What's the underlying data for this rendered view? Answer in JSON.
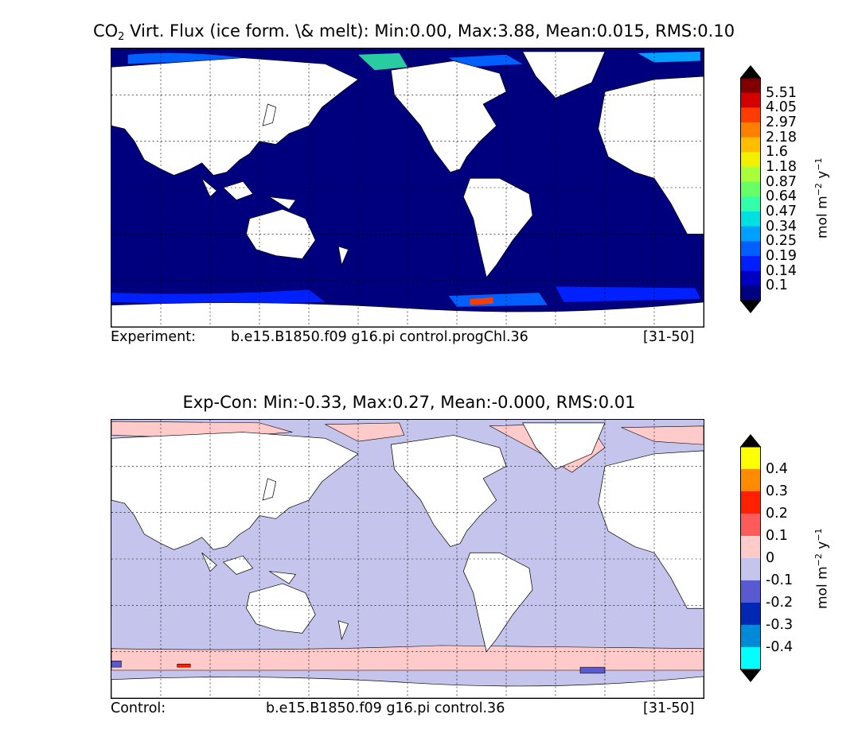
{
  "top_panel": {
    "title_prefix": "CO",
    "title_sub": "2",
    "title_rest": " Virt. Flux (ice form. \\& melt): Min:0.00, Max:3.88, Mean:0.015, RMS:0.10",
    "footer_label": "Experiment:",
    "footer_case": "b.e15.B1850.f09 g16.pi control.progChl.36",
    "footer_years": "[31-50]",
    "colorbar_unit_main": "mol m",
    "colorbar_unit_exp1": "−2",
    "colorbar_unit_mid": " y",
    "colorbar_unit_exp2": "−1",
    "colorbar_levels": [
      "5.51",
      "4.05",
      "2.97",
      "2.18",
      "1.6",
      "1.18",
      "0.87",
      "0.64",
      "0.47",
      "0.34",
      "0.25",
      "0.19",
      "0.14",
      "0.1"
    ],
    "colorbar_colors": [
      "#800000",
      "#d40000",
      "#ff3c00",
      "#ff7f00",
      "#ffbf00",
      "#f0f000",
      "#aaff3c",
      "#66ff66",
      "#33ffaa",
      "#00e0e0",
      "#00a0ff",
      "#0060ff",
      "#0020ff",
      "#0000c0",
      "#00007f"
    ],
    "extend_colors": {
      "max": "#000000",
      "min": "#000000"
    },
    "ocean_color": "#00007f"
  },
  "bottom_panel": {
    "title": "Exp-Con: Min:-0.33, Max:0.27, Mean:-0.000, RMS:0.01",
    "footer_label": "Control:",
    "footer_case": "b.e15.B1850.f09 g16.pi control.36",
    "footer_years": "[31-50]",
    "colorbar_unit_main": "mol m",
    "colorbar_unit_exp1": "−2",
    "colorbar_unit_mid": " y",
    "colorbar_unit_exp2": "−1",
    "colorbar_levels": [
      "0.4",
      "0.3",
      "0.2",
      "0.1",
      "0",
      "-0.1",
      "-0.2",
      "-0.3",
      "-0.4"
    ],
    "colorbar_colors": [
      "#ffff00",
      "#ff8c00",
      "#ff2000",
      "#ff5a5a",
      "#ffcaca",
      "#c4c4ec",
      "#5a5ad0",
      "#0028b4",
      "#008ad8",
      "#00ffff"
    ],
    "extend_colors": {
      "max": "#000000",
      "min": "#000000"
    },
    "ocean_color": "#c4c4ec"
  }
}
